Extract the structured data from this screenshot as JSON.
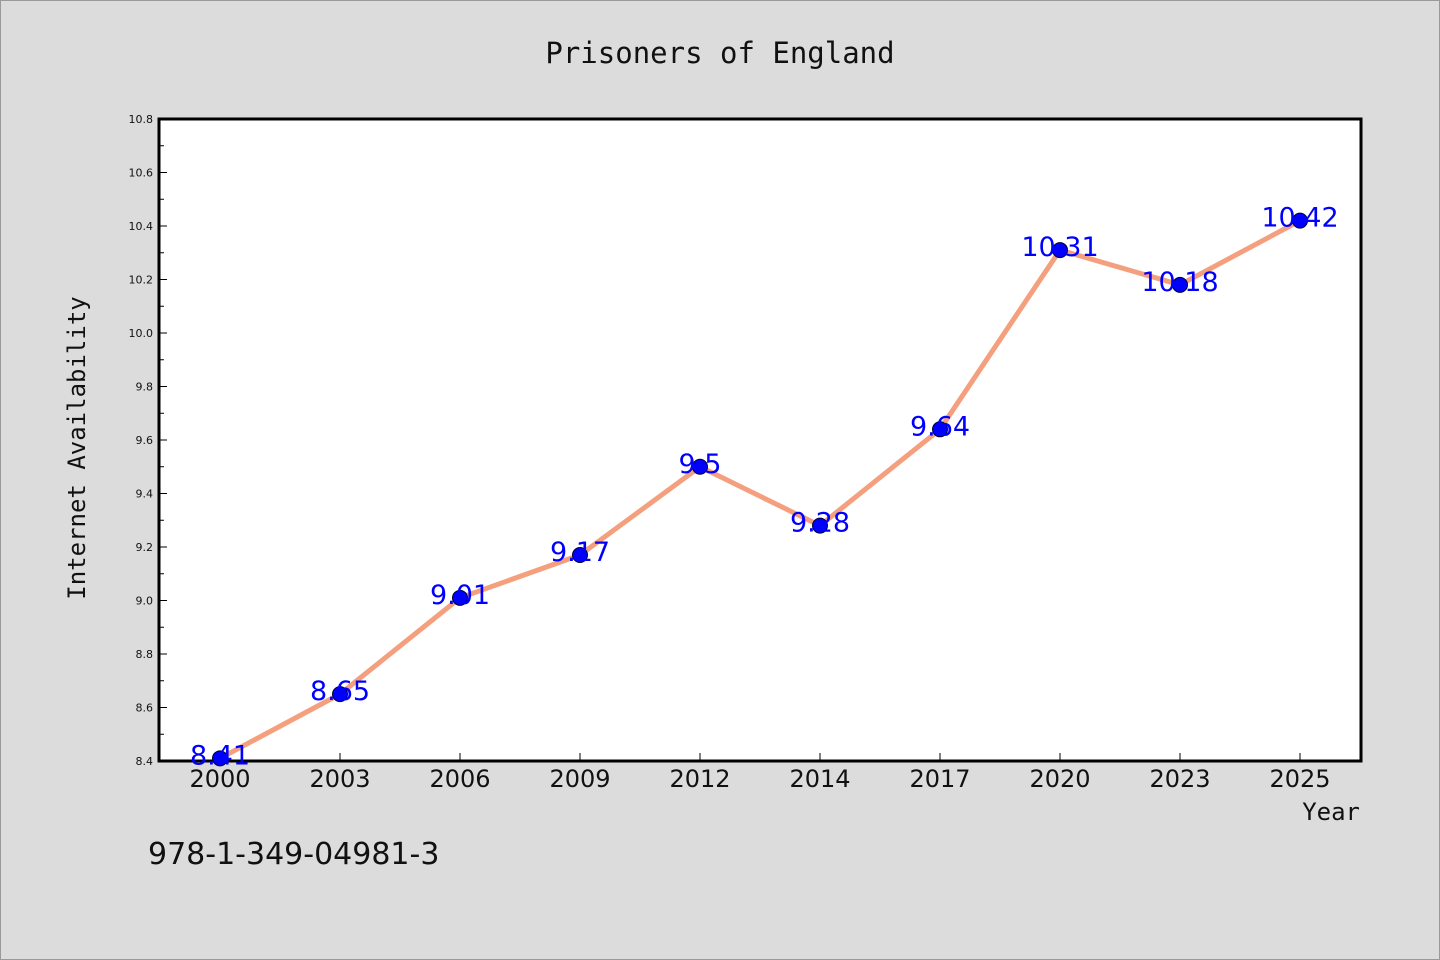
{
  "chart_data": {
    "type": "line",
    "title": "Prisoners of England",
    "xlabel": "Year",
    "ylabel": "Internet Availability",
    "categories": [
      "2000",
      "2003",
      "2006",
      "2009",
      "2012",
      "2014",
      "2017",
      "2020",
      "2023",
      "2025"
    ],
    "series": [
      {
        "values": [
          8.41,
          8.65,
          9.01,
          9.17,
          9.5,
          9.28,
          9.64,
          10.31,
          10.18,
          10.42
        ],
        "labels": [
          "8.41",
          "8.65",
          "9.01",
          "9.17",
          "9.5",
          "9.28",
          "9.64",
          "10.31",
          "10.18",
          "10.42"
        ]
      }
    ],
    "ylim": [
      8.4,
      10.8
    ],
    "yticks": [
      "8.4",
      "8.6",
      "8.8",
      "9.0",
      "9.2",
      "9.4",
      "9.6",
      "9.8",
      "10.0",
      "10.2",
      "10.4",
      "10.6",
      "10.8"
    ],
    "grid": false,
    "legend": "none",
    "colors": {
      "line": "#f4a07e",
      "marker": "#0000ff",
      "data_label": "#0000ff",
      "background": "#dcdcdc",
      "plot_background": "#ffffff"
    }
  },
  "footer": {
    "isbn": "978-1-349-04981-3"
  }
}
